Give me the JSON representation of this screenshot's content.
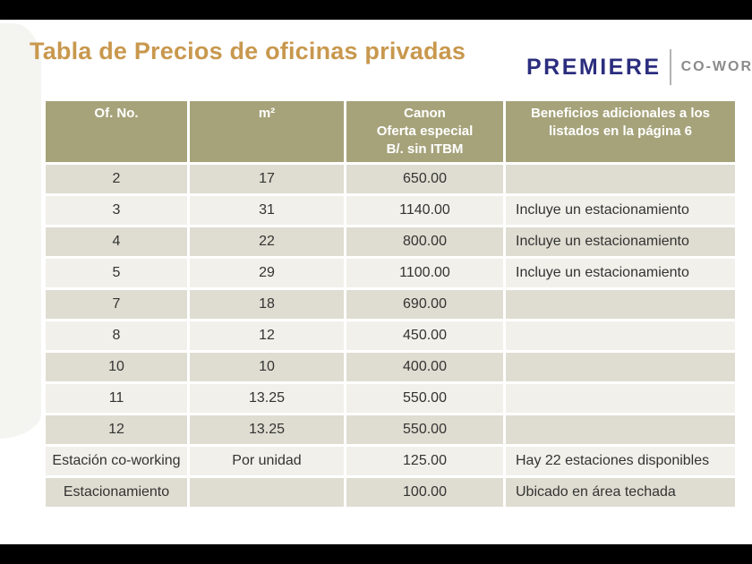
{
  "page": {
    "title": "Tabla de Precios de oficinas privadas"
  },
  "brand": {
    "name": "PREMIERE",
    "tagline": "CO-WORKING"
  },
  "colors": {
    "title_gold": "#c8984e",
    "brand_navy": "#2b2d7e",
    "brand_gray": "#8b8b8b",
    "header_bg": "#a6a37b",
    "row_dark": "#dfddd1",
    "row_light": "#f1f0ea",
    "body_text": "#333333",
    "letterbox": "#000000"
  },
  "table": {
    "headers": [
      {
        "lines": [
          "Of. No."
        ]
      },
      {
        "lines": [
          "m²"
        ]
      },
      {
        "lines": [
          "Canon",
          "Oferta especial",
          "B/. sin ITBM"
        ]
      },
      {
        "lines": [
          "Beneficios adicionales a los",
          "listados en la página 6"
        ]
      }
    ],
    "rows": [
      {
        "of_no": "2",
        "m2": "17",
        "canon": "650.00",
        "beneficios": ""
      },
      {
        "of_no": "3",
        "m2": "31",
        "canon": "1140.00",
        "beneficios": "Incluye un estacionamiento"
      },
      {
        "of_no": "4",
        "m2": "22",
        "canon": "800.00",
        "beneficios": "Incluye un estacionamiento"
      },
      {
        "of_no": "5",
        "m2": "29",
        "canon": "1100.00",
        "beneficios": "Incluye un estacionamiento"
      },
      {
        "of_no": "7",
        "m2": "18",
        "canon": "690.00",
        "beneficios": ""
      },
      {
        "of_no": "8",
        "m2": "12",
        "canon": "450.00",
        "beneficios": ""
      },
      {
        "of_no": "10",
        "m2": "10",
        "canon": "400.00",
        "beneficios": ""
      },
      {
        "of_no": "11",
        "m2": "13.25",
        "canon": "550.00",
        "beneficios": ""
      },
      {
        "of_no": "12",
        "m2": "13.25",
        "canon": "550.00",
        "beneficios": ""
      },
      {
        "of_no": "Estación co-working",
        "m2": "Por unidad",
        "canon": "125.00",
        "beneficios": "Hay 22 estaciones disponibles"
      },
      {
        "of_no": "Estacionamiento",
        "m2": "",
        "canon": "100.00",
        "beneficios": "Ubicado en área techada"
      }
    ]
  }
}
